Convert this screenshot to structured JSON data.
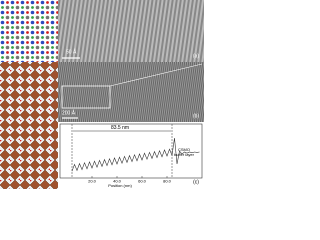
{
  "figure": {
    "panel_a": {
      "label": "(a)",
      "scale_bar": "50 Å"
    },
    "panel_b": {
      "label": "(b)",
      "scale_bar": "200 Å"
    }
  },
  "chart_data": {
    "type": "line",
    "panel_label": "(c)",
    "x_label": "Position (nm)",
    "annotations": {
      "width": "83.5 nm",
      "buffer": [
        "CSMO",
        "buffer layer"
      ]
    },
    "xlim": [
      0,
      108
    ],
    "ylim": [
      0,
      1
    ],
    "xticks": [
      {
        "value": 20,
        "label": "20.0"
      },
      {
        "value": 40,
        "label": "40.0"
      },
      {
        "value": 60,
        "label": "60.0"
      },
      {
        "value": 80,
        "label": "80.0"
      }
    ],
    "x": [
      4,
      6,
      8,
      10,
      12,
      14,
      16,
      18,
      20,
      22,
      24,
      26,
      28,
      30,
      32,
      34,
      36,
      38,
      40,
      42,
      44,
      46,
      48,
      50,
      52,
      54,
      56,
      58,
      60,
      62,
      64,
      66,
      68,
      70,
      72,
      74,
      76,
      78,
      80,
      82,
      84,
      86,
      88,
      90,
      92,
      94,
      96,
      98,
      100,
      102,
      104,
      106
    ],
    "series": [
      {
        "color": "#333333",
        "values": [
          0.12,
          0.29,
          0.14,
          0.31,
          0.16,
          0.33,
          0.18,
          0.35,
          0.2,
          0.37,
          0.22,
          0.39,
          0.24,
          0.41,
          0.26,
          0.43,
          0.28,
          0.45,
          0.3,
          0.47,
          0.32,
          0.49,
          0.34,
          0.51,
          0.36,
          0.53,
          0.38,
          0.55,
          0.4,
          0.57,
          0.42,
          0.59,
          0.44,
          0.61,
          0.46,
          0.63,
          0.48,
          0.65,
          0.5,
          0.67,
          0.52,
          0.95,
          0.3,
          0.62,
          0.55,
          0.6,
          0.57,
          0.6,
          0.58,
          0.6,
          0.59,
          0.6
        ]
      }
    ]
  }
}
